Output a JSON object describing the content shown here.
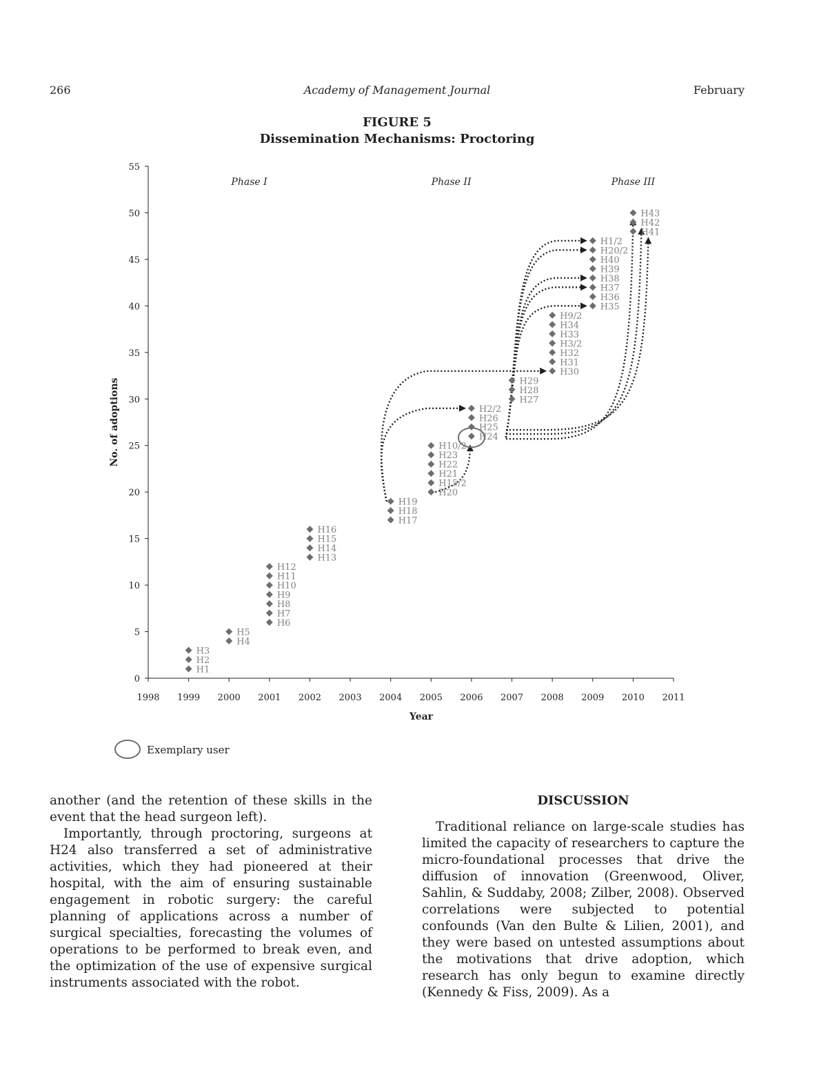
{
  "header": {
    "page_number": "266",
    "journal": "Academy of Management Journal",
    "month": "February"
  },
  "figure": {
    "label": "FIGURE 5",
    "caption": "Dissemination Mechanisms: Proctoring",
    "legend_label": "Exemplary user"
  },
  "chart_data": {
    "type": "scatter",
    "title": "",
    "xlabel": "Year",
    "ylabel": "No. of adoptions",
    "xlim": [
      1998,
      2011
    ],
    "ylim": [
      0,
      55
    ],
    "x_ticks": [
      1998,
      1999,
      2000,
      2001,
      2002,
      2003,
      2004,
      2005,
      2006,
      2007,
      2008,
      2009,
      2010,
      2011
    ],
    "y_ticks": [
      0,
      5,
      10,
      15,
      20,
      25,
      30,
      35,
      40,
      45,
      50,
      55
    ],
    "grid": false,
    "phases": [
      {
        "label": "Phase I",
        "x": 2000.5
      },
      {
        "label": "Phase II",
        "x": 2005.5
      },
      {
        "label": "Phase III",
        "x": 2010.0
      }
    ],
    "marker_color": "#6d6e71",
    "points": [
      {
        "year": 1999,
        "adoptions": 1,
        "label": "H1"
      },
      {
        "year": 1999,
        "adoptions": 2,
        "label": "H2"
      },
      {
        "year": 1999,
        "adoptions": 3,
        "label": "H3"
      },
      {
        "year": 2000,
        "adoptions": 4,
        "label": "H4"
      },
      {
        "year": 2000,
        "adoptions": 5,
        "label": "H5"
      },
      {
        "year": 2001,
        "adoptions": 6,
        "label": "H6"
      },
      {
        "year": 2001,
        "adoptions": 7,
        "label": "H7"
      },
      {
        "year": 2001,
        "adoptions": 8,
        "label": "H8"
      },
      {
        "year": 2001,
        "adoptions": 9,
        "label": "H9"
      },
      {
        "year": 2001,
        "adoptions": 10,
        "label": "H10"
      },
      {
        "year": 2001,
        "adoptions": 11,
        "label": "H11"
      },
      {
        "year": 2001,
        "adoptions": 12,
        "label": "H12"
      },
      {
        "year": 2002,
        "adoptions": 13,
        "label": "H13"
      },
      {
        "year": 2002,
        "adoptions": 14,
        "label": "H14"
      },
      {
        "year": 2002,
        "adoptions": 15,
        "label": "H15"
      },
      {
        "year": 2002,
        "adoptions": 16,
        "label": "H16"
      },
      {
        "year": 2004,
        "adoptions": 17,
        "label": "H17"
      },
      {
        "year": 2004,
        "adoptions": 18,
        "label": "H18"
      },
      {
        "year": 2004,
        "adoptions": 19,
        "label": "H19"
      },
      {
        "year": 2005,
        "adoptions": 20,
        "label": "H20"
      },
      {
        "year": 2005,
        "adoptions": 21,
        "label": "H15/2"
      },
      {
        "year": 2005,
        "adoptions": 22,
        "label": "H21"
      },
      {
        "year": 2005,
        "adoptions": 23,
        "label": "H22"
      },
      {
        "year": 2005,
        "adoptions": 24,
        "label": "H23"
      },
      {
        "year": 2005,
        "adoptions": 25,
        "label": "H10/2"
      },
      {
        "year": 2006,
        "adoptions": 26,
        "label": "H24"
      },
      {
        "year": 2006,
        "adoptions": 27,
        "label": "H25"
      },
      {
        "year": 2006,
        "adoptions": 28,
        "label": "H26"
      },
      {
        "year": 2006,
        "adoptions": 29,
        "label": "H2/2"
      },
      {
        "year": 2007,
        "adoptions": 30,
        "label": "H27"
      },
      {
        "year": 2007,
        "adoptions": 31,
        "label": "H28"
      },
      {
        "year": 2007,
        "adoptions": 32,
        "label": "H29"
      },
      {
        "year": 2008,
        "adoptions": 33,
        "label": "H30"
      },
      {
        "year": 2008,
        "adoptions": 34,
        "label": "H31"
      },
      {
        "year": 2008,
        "adoptions": 35,
        "label": "H32"
      },
      {
        "year": 2008,
        "adoptions": 36,
        "label": "H3/2"
      },
      {
        "year": 2008,
        "adoptions": 37,
        "label": "H33"
      },
      {
        "year": 2008,
        "adoptions": 38,
        "label": "H34"
      },
      {
        "year": 2008,
        "adoptions": 39,
        "label": "H9/2"
      },
      {
        "year": 2009,
        "adoptions": 40,
        "label": "H35"
      },
      {
        "year": 2009,
        "adoptions": 41,
        "label": "H36"
      },
      {
        "year": 2009,
        "adoptions": 42,
        "label": "H37"
      },
      {
        "year": 2009,
        "adoptions": 43,
        "label": "H38"
      },
      {
        "year": 2009,
        "adoptions": 44,
        "label": "H39"
      },
      {
        "year": 2009,
        "adoptions": 45,
        "label": "H40"
      },
      {
        "year": 2009,
        "adoptions": 46,
        "label": "H20/2"
      },
      {
        "year": 2009,
        "adoptions": 47,
        "label": "H1/2"
      },
      {
        "year": 2010,
        "adoptions": 48,
        "label": "H41"
      },
      {
        "year": 2010,
        "adoptions": 49,
        "label": "H42"
      },
      {
        "year": 2010,
        "adoptions": 50,
        "label": "H43"
      }
    ],
    "exemplary_user": {
      "year": 2006,
      "adoptions": 26,
      "label": "H24"
    },
    "proctoring_links": [
      {
        "from": "H19",
        "to": "H2/2"
      },
      {
        "from": "H19",
        "to": "H30"
      },
      {
        "from": "H20",
        "to": "H24"
      },
      {
        "from": "H24",
        "to": "H35"
      },
      {
        "from": "H24",
        "to": "H37"
      },
      {
        "from": "H24",
        "to": "H38"
      },
      {
        "from": "H24",
        "to": "H20/2"
      },
      {
        "from": "H24",
        "to": "H1/2"
      },
      {
        "from": "H24",
        "to": "H43"
      },
      {
        "from": "H24",
        "to": "H42"
      },
      {
        "from": "H24",
        "to": "H41"
      }
    ]
  },
  "left_column": {
    "p1": "another (and the retention of these skills in the event that the head surgeon left).",
    "p2": "Importantly, through proctoring, surgeons at H24 also transferred a set of administrative activities, which they had pioneered at their hospital, with the aim of ensuring sustainable engagement in robotic surgery: the careful planning of applications across a number of surgical specialties, forecasting the volumes of operations to be performed to break even, and the optimization of the use of expensive surgical instruments associated with the robot."
  },
  "right_column": {
    "heading": "DISCUSSION",
    "p1": "Traditional reliance on large-scale studies has limited the capacity of researchers to capture the micro-foundational processes that drive the diffusion of innovation (Greenwood, Oliver, Sahlin, & Suddaby, 2008; Zilber, 2008). Observed correlations were subjected to potential confounds (Van den Bulte & Lilien, 2001), and they were based on untested assumptions about the motivations that drive adoption, which research has only begun to examine directly (Kennedy & Fiss, 2009). As a"
  }
}
